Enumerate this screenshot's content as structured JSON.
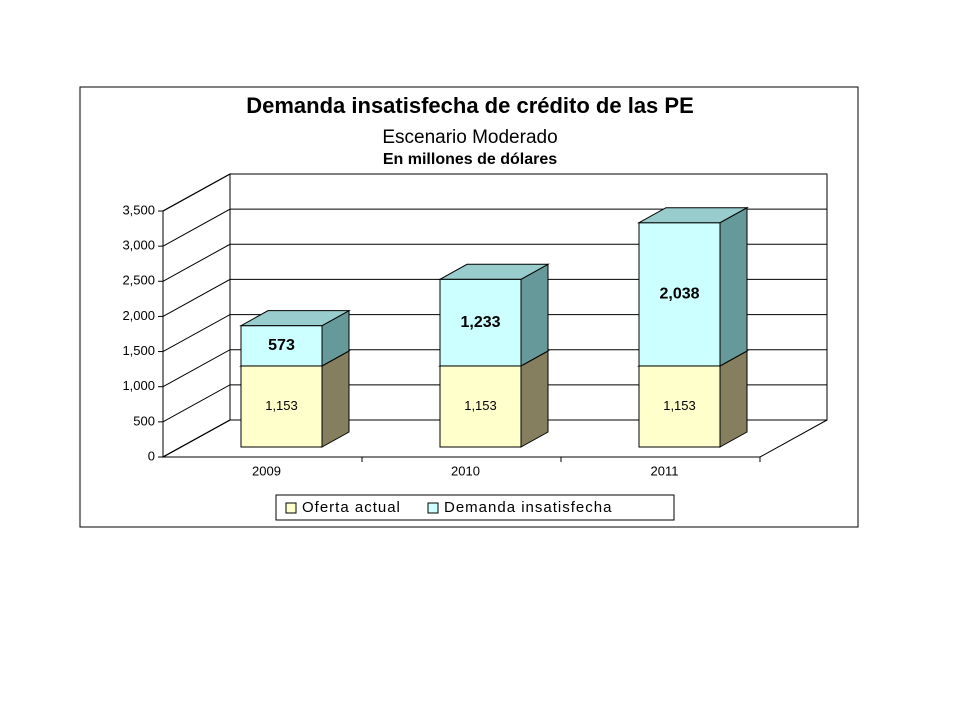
{
  "chart_data": {
    "type": "bar3d_stacked",
    "title": "Demanda insatisfecha de crédito de las PE",
    "subtitle": "Escenario Moderado",
    "unit_note": "En millones de dólares",
    "categories": [
      "2009",
      "2010",
      "2011"
    ],
    "series": [
      {
        "name": "Oferta actual",
        "color": "#FFFFCC",
        "side_color": "#857F5F",
        "values": [
          1153,
          1153,
          1153
        ],
        "value_labels": [
          "1,153",
          "1,153",
          "1,153"
        ]
      },
      {
        "name": "Demanda insatisfecha",
        "color": "#CCFFFF",
        "side_color": "#669999",
        "values": [
          573,
          1233,
          2038
        ],
        "value_labels": [
          "573",
          "1,233",
          "2,038"
        ]
      }
    ],
    "ylim": [
      0,
      3500
    ],
    "yticks": [
      0,
      {
        "value": 500,
        "label": "500"
      },
      {
        "value": 1000,
        "label": "1,000"
      },
      {
        "value": 1500,
        "label": "1,500"
      },
      {
        "value": 2000,
        "label": "2,000"
      },
      {
        "value": 2500,
        "label": "2,500"
      },
      {
        "value": 3000,
        "label": "3,000"
      },
      {
        "value": 3500,
        "label": "3,500"
      }
    ],
    "grid": true,
    "legend": "bottom"
  }
}
